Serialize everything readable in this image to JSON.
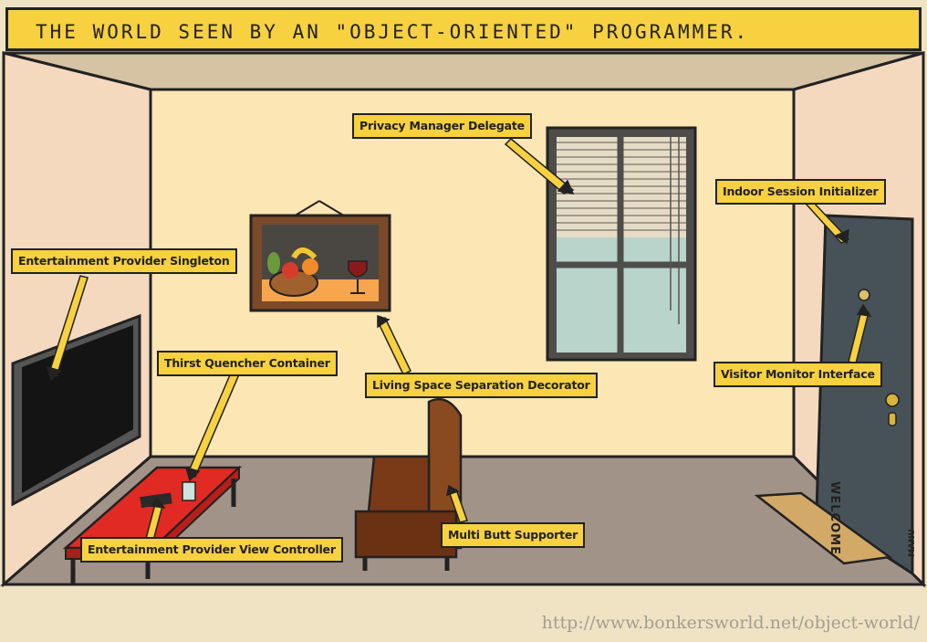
{
  "title": "THE WORLD SEEN BY AN \"OBJECT-ORIENTED\" PROGRAMMER.",
  "labels": {
    "privacy": "Privacy Manager Delegate",
    "indoor": "Indoor Session Initializer",
    "entertainment": "Entertainment Provider Singleton",
    "thirst": "Thirst Quencher Container",
    "living": "Living Space Separation Decorator",
    "visitor": "Visitor Monitor Interface",
    "multi": "Multi Butt Supporter",
    "viewcontroller": "Entertainment Provider View Controller"
  },
  "doormat_text": "WELCOME",
  "credit": "MANU",
  "footer_url": "http://www.bonkersworld.net/object-world/"
}
